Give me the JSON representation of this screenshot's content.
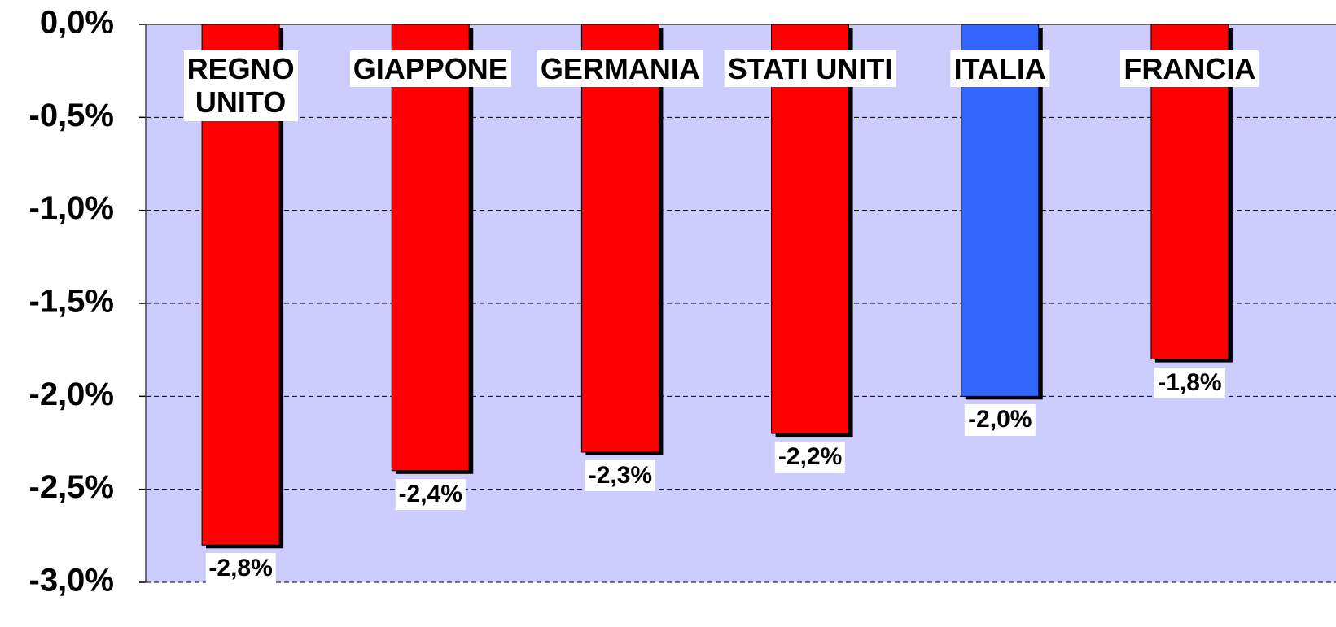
{
  "chart_data": {
    "type": "bar",
    "categories": [
      "REGNO\nUNITO",
      "GIAPPONE",
      "GERMANIA",
      "STATI UNITI",
      "ITALIA",
      "FRANCIA"
    ],
    "values": [
      -2.8,
      -2.4,
      -2.3,
      -2.2,
      -2.0,
      -1.8
    ],
    "value_labels": [
      "-2,8%",
      "-2,4%",
      "-2,3%",
      "-2,2%",
      "-2,0%",
      "-1,8%"
    ],
    "colors": [
      "#ff0000",
      "#ff0000",
      "#ff0000",
      "#ff0000",
      "#3366ff",
      "#ff0000"
    ],
    "ylim": [
      -3,
      0
    ],
    "yticks": [
      {
        "value": 0,
        "label": "0,0%"
      },
      {
        "value": -0.5,
        "label": "-0,5%"
      },
      {
        "value": -1,
        "label": "-1,0%"
      },
      {
        "value": -1.5,
        "label": "-1,5%"
      },
      {
        "value": -2,
        "label": "-2,0%"
      },
      {
        "value": -2.5,
        "label": "-2,5%"
      },
      {
        "value": -3,
        "label": "-3,0%"
      }
    ],
    "grid": true
  }
}
